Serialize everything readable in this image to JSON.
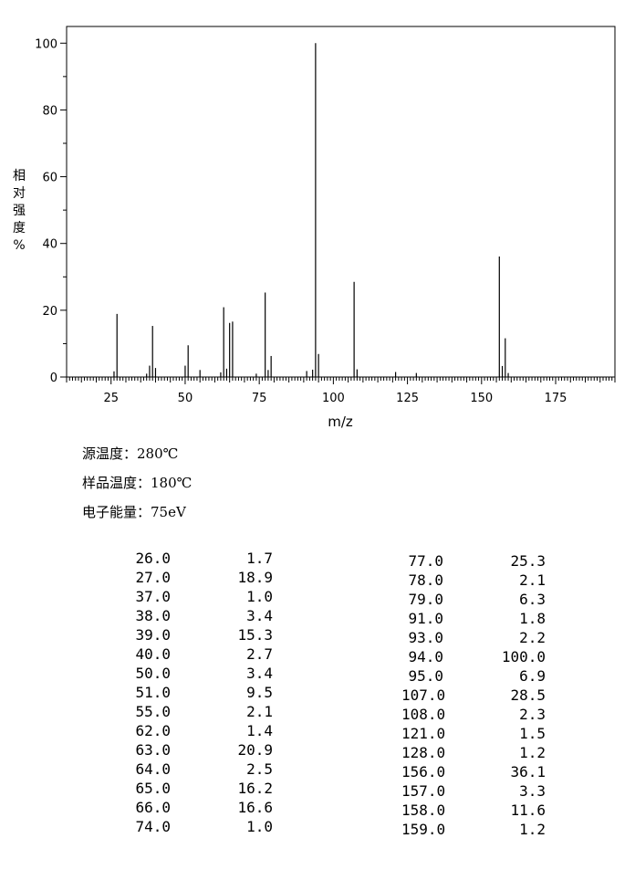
{
  "chart_data": {
    "type": "bar",
    "xlabel": "m/z",
    "ylabel_chars": [
      "相",
      "对",
      "强",
      "度",
      "%"
    ],
    "xlim": [
      10,
      195
    ],
    "ylim": [
      0,
      105
    ],
    "xticks": [
      25,
      50,
      75,
      100,
      125,
      150,
      175
    ],
    "yticks": [
      0,
      20,
      40,
      60,
      80,
      100
    ],
    "grid": false,
    "peaks": [
      {
        "mz": 26.0,
        "abundance": 1.7
      },
      {
        "mz": 27.0,
        "abundance": 18.9
      },
      {
        "mz": 37.0,
        "abundance": 1.0
      },
      {
        "mz": 38.0,
        "abundance": 3.4
      },
      {
        "mz": 39.0,
        "abundance": 15.3
      },
      {
        "mz": 40.0,
        "abundance": 2.7
      },
      {
        "mz": 50.0,
        "abundance": 3.4
      },
      {
        "mz": 51.0,
        "abundance": 9.5
      },
      {
        "mz": 55.0,
        "abundance": 2.1
      },
      {
        "mz": 62.0,
        "abundance": 1.4
      },
      {
        "mz": 63.0,
        "abundance": 20.9
      },
      {
        "mz": 64.0,
        "abundance": 2.5
      },
      {
        "mz": 65.0,
        "abundance": 16.2
      },
      {
        "mz": 66.0,
        "abundance": 16.6
      },
      {
        "mz": 74.0,
        "abundance": 1.0
      },
      {
        "mz": 77.0,
        "abundance": 25.3
      },
      {
        "mz": 78.0,
        "abundance": 2.1
      },
      {
        "mz": 79.0,
        "abundance": 6.3
      },
      {
        "mz": 91.0,
        "abundance": 1.8
      },
      {
        "mz": 93.0,
        "abundance": 2.2
      },
      {
        "mz": 94.0,
        "abundance": 100.0
      },
      {
        "mz": 95.0,
        "abundance": 6.9
      },
      {
        "mz": 107.0,
        "abundance": 28.5
      },
      {
        "mz": 108.0,
        "abundance": 2.3
      },
      {
        "mz": 121.0,
        "abundance": 1.5
      },
      {
        "mz": 128.0,
        "abundance": 1.2
      },
      {
        "mz": 156.0,
        "abundance": 36.1
      },
      {
        "mz": 157.0,
        "abundance": 3.3
      },
      {
        "mz": 158.0,
        "abundance": 11.6
      },
      {
        "mz": 159.0,
        "abundance": 1.2
      }
    ]
  },
  "conditions": {
    "source_temp": "源温度：280℃",
    "sample_temp": "样品温度：180℃",
    "electron_energy": "电子能量：75eV"
  },
  "table_left": [
    {
      "mz": "26.0",
      "ab": "1.7"
    },
    {
      "mz": "27.0",
      "ab": "18.9"
    },
    {
      "mz": "37.0",
      "ab": "1.0"
    },
    {
      "mz": "38.0",
      "ab": "3.4"
    },
    {
      "mz": "39.0",
      "ab": "15.3"
    },
    {
      "mz": "40.0",
      "ab": "2.7"
    },
    {
      "mz": "50.0",
      "ab": "3.4"
    },
    {
      "mz": "51.0",
      "ab": "9.5"
    },
    {
      "mz": "55.0",
      "ab": "2.1"
    },
    {
      "mz": "62.0",
      "ab": "1.4"
    },
    {
      "mz": "63.0",
      "ab": "20.9"
    },
    {
      "mz": "64.0",
      "ab": "2.5"
    },
    {
      "mz": "65.0",
      "ab": "16.2"
    },
    {
      "mz": "66.0",
      "ab": "16.6"
    },
    {
      "mz": "74.0",
      "ab": "1.0"
    }
  ],
  "table_right": [
    {
      "mz": "77.0",
      "ab": "25.3"
    },
    {
      "mz": "78.0",
      "ab": "2.1"
    },
    {
      "mz": "79.0",
      "ab": "6.3"
    },
    {
      "mz": "91.0",
      "ab": "1.8"
    },
    {
      "mz": "93.0",
      "ab": "2.2"
    },
    {
      "mz": "94.0",
      "ab": "100.0"
    },
    {
      "mz": "95.0",
      "ab": "6.9"
    },
    {
      "mz": "107.0",
      "ab": "28.5"
    },
    {
      "mz": "108.0",
      "ab": "2.3"
    },
    {
      "mz": "121.0",
      "ab": "1.5"
    },
    {
      "mz": "128.0",
      "ab": "1.2"
    },
    {
      "mz": "156.0",
      "ab": "36.1"
    },
    {
      "mz": "157.0",
      "ab": "3.3"
    },
    {
      "mz": "158.0",
      "ab": "11.6"
    },
    {
      "mz": "159.0",
      "ab": "1.2"
    }
  ]
}
